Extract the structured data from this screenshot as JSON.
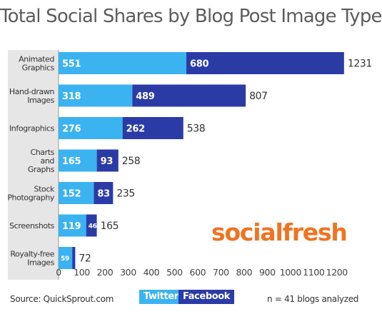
{
  "chart_data": {
    "type": "bar",
    "orientation": "horizontal",
    "stacked": true,
    "title": "Total Social Shares by Blog Post Image Type",
    "categories": [
      [
        "Animated",
        "Graphics"
      ],
      [
        "Hand-drawn",
        "Images"
      ],
      [
        "Infographics"
      ],
      [
        "Charts",
        "and",
        "Graphs"
      ],
      [
        "Stock",
        "Photography"
      ],
      [
        "Screenshots"
      ],
      [
        "Royalty-free",
        "Images"
      ]
    ],
    "series": [
      {
        "name": "Twitter",
        "color": "#3bb3f0",
        "values": [
          551,
          318,
          276,
          165,
          152,
          119,
          59
        ]
      },
      {
        "name": "Facebook",
        "color": "#2b3ba6",
        "values": [
          680,
          489,
          262,
          93,
          83,
          46,
          13
        ]
      }
    ],
    "segment_labels": [
      [
        "551",
        "318",
        "276",
        "165",
        "152",
        "119",
        "59"
      ],
      [
        "680",
        "489",
        "262",
        "93",
        "83",
        "46",
        ""
      ]
    ],
    "totals": [
      1231,
      807,
      538,
      258,
      235,
      165,
      72
    ],
    "xlim": [
      0,
      1260
    ],
    "xticks": [
      0,
      100,
      200,
      300,
      400,
      500,
      600,
      700,
      800,
      900,
      1000,
      1100,
      1200
    ],
    "grid": false,
    "legend_position": "bottom"
  },
  "brand": "socialfresh",
  "footer": {
    "source": "Source: QuickSprout.com",
    "note": "n = 41 blogs analyzed"
  }
}
